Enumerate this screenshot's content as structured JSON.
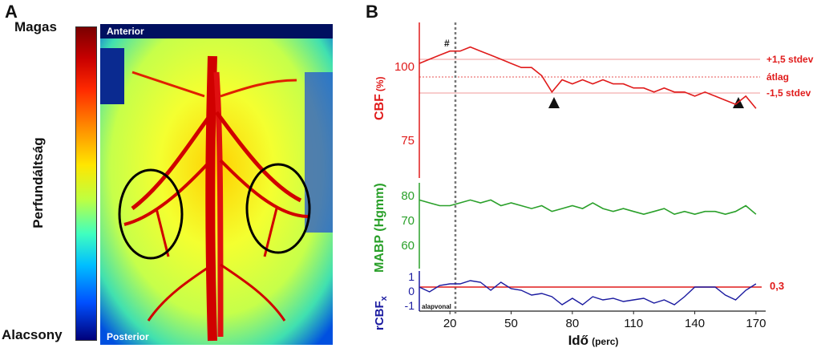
{
  "panel_a": {
    "letter": "A",
    "scale_high": "Magas",
    "scale_low": "Alacsony",
    "scale_title": "Perfundáltság",
    "image_top": "Anterior",
    "image_bottom": "Posterior"
  },
  "panel_b": {
    "letter": "B",
    "cbf": {
      "ylabel": "CBF",
      "ylabel_unit": "(%)",
      "ticks": [
        "100",
        "75"
      ],
      "hash": "#",
      "upper_label": "+1,5 stdev",
      "mean_label": "átlag",
      "lower_label": "-1,5 stdev",
      "color": "#e01b1b"
    },
    "mabp": {
      "ylabel": "MABP (Hgmm)",
      "ticks": [
        "80",
        "70",
        "60"
      ],
      "color": "#2aa02a"
    },
    "rcbf": {
      "ylabel": "rCBF",
      "ylabel_sub": "x",
      "ticks": [
        "1",
        "0",
        "-1"
      ],
      "threshold_label": "0,3",
      "color": "#1a1aa0",
      "threshold_color": "#e01b1b"
    },
    "baseline_label": "alapvonal",
    "xlabel": "Idő",
    "xlabel_unit": "(perc)",
    "xticks": [
      "20",
      "50",
      "80",
      "110",
      "140",
      "170"
    ]
  },
  "chart_data": [
    {
      "type": "line",
      "title": "",
      "xlabel": "Idő (perc)",
      "ylabel": "CBF (%)",
      "xlim": [
        5,
        172
      ],
      "ylim": [
        72,
        110
      ],
      "reference_lines": {
        "upper": 102,
        "mean": 96,
        "lower": 91
      },
      "baseline_end": 20,
      "series": [
        {
          "values_x": [
            5,
            10,
            15,
            20,
            25,
            30,
            35,
            40,
            45,
            50,
            55,
            60,
            65,
            70,
            75,
            80,
            85,
            90,
            95,
            100,
            105,
            110,
            115,
            120,
            125,
            130,
            135,
            140,
            145,
            150,
            155,
            160,
            165,
            170
          ],
          "values_y": [
            100,
            101,
            102,
            103,
            103,
            104,
            103,
            102,
            101,
            100,
            99,
            99,
            97,
            93,
            96,
            95,
            96,
            95,
            96,
            95,
            95,
            94,
            94,
            93,
            94,
            93,
            93,
            92,
            93,
            92,
            91,
            90,
            92,
            89
          ]
        }
      ]
    },
    {
      "type": "line",
      "title": "",
      "xlabel": "Idő (perc)",
      "ylabel": "MABP (Hgmm)",
      "xlim": [
        5,
        172
      ],
      "ylim": [
        55,
        85
      ],
      "series": [
        {
          "values_x": [
            5,
            10,
            15,
            20,
            25,
            30,
            35,
            40,
            45,
            50,
            55,
            60,
            65,
            70,
            75,
            80,
            85,
            90,
            95,
            100,
            105,
            110,
            115,
            120,
            125,
            130,
            135,
            140,
            145,
            150,
            155,
            160,
            165,
            170
          ],
          "values_y": [
            79,
            78,
            77,
            77,
            78,
            79,
            78,
            79,
            77,
            78,
            77,
            76,
            77,
            75,
            76,
            77,
            76,
            78,
            76,
            75,
            76,
            75,
            74,
            75,
            76,
            74,
            75,
            74,
            75,
            75,
            74,
            75,
            77,
            74
          ]
        }
      ]
    },
    {
      "type": "line",
      "title": "",
      "xlabel": "Idő (perc)",
      "ylabel": "rCBFx",
      "xlim": [
        5,
        172
      ],
      "ylim": [
        -1.2,
        1.2
      ],
      "threshold": 0.3,
      "series": [
        {
          "values_x": [
            5,
            10,
            15,
            20,
            25,
            30,
            35,
            40,
            45,
            50,
            55,
            60,
            65,
            70,
            75,
            80,
            85,
            90,
            95,
            100,
            105,
            110,
            115,
            120,
            125,
            130,
            135,
            140,
            145,
            150,
            155,
            160,
            165,
            170
          ],
          "values_y": [
            0.3,
            0.0,
            0.4,
            0.5,
            0.5,
            0.7,
            0.6,
            0.1,
            0.6,
            0.2,
            0.1,
            -0.2,
            -0.1,
            -0.3,
            -0.8,
            -0.4,
            -0.8,
            -0.3,
            -0.5,
            -0.4,
            -0.6,
            -0.5,
            -0.4,
            -0.7,
            -0.5,
            -0.8,
            -0.3,
            0.3,
            0.3,
            0.3,
            -0.2,
            -0.5,
            0.1,
            0.5
          ]
        }
      ]
    }
  ]
}
